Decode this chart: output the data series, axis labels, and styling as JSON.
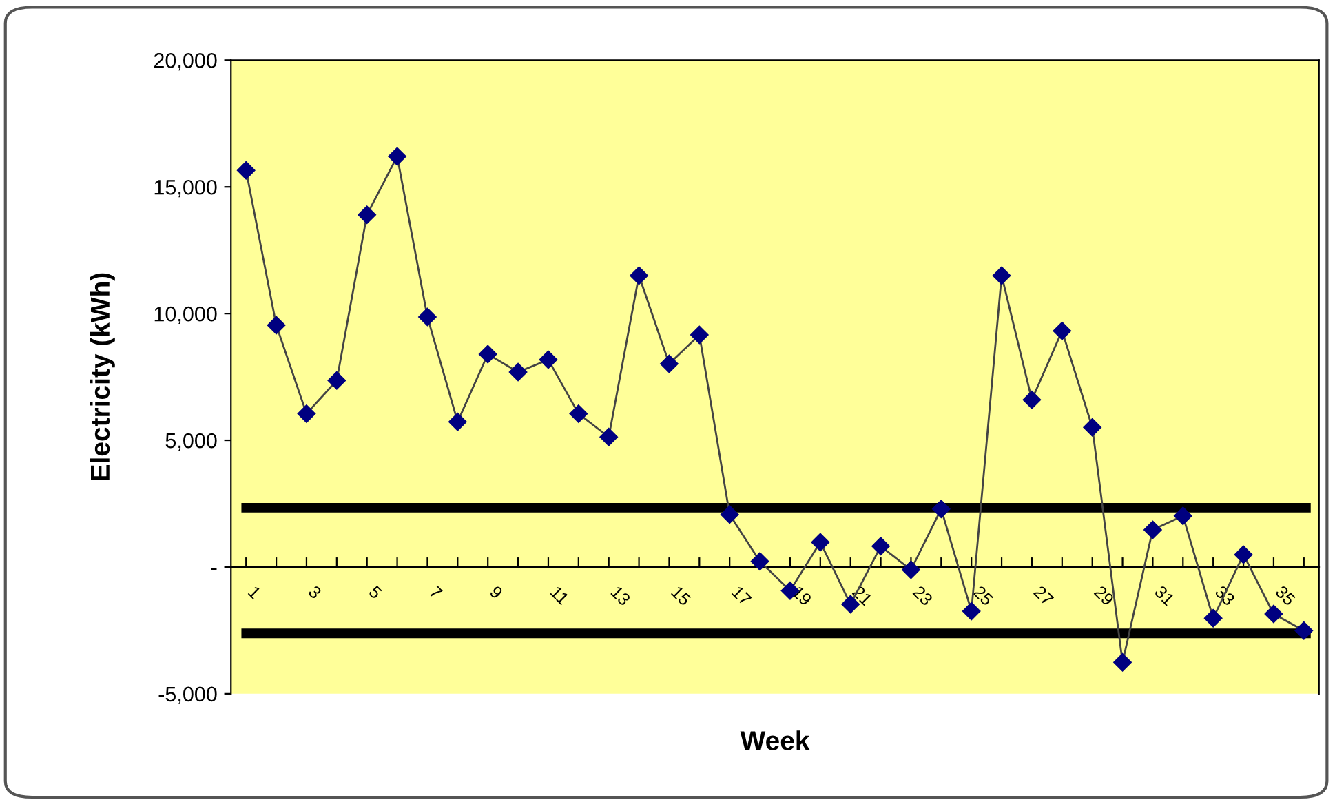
{
  "chart_data": {
    "type": "line",
    "xlabel": "Week",
    "ylabel": "Electricity (kWh)",
    "categories": [
      "1",
      null,
      "3",
      null,
      "5",
      null,
      "7",
      null,
      "9",
      null,
      "11",
      null,
      "13",
      null,
      "15",
      null,
      "17",
      null,
      "19",
      null,
      "21",
      null,
      "23",
      null,
      "25",
      null,
      "27",
      null,
      "29",
      null,
      "31",
      null,
      "33",
      null,
      "35",
      null
    ],
    "series": [
      {
        "color": "#000080",
        "values": [
          15650,
          9540,
          6050,
          7360,
          13900,
          16200,
          9870,
          5730,
          8400,
          7690,
          8180,
          6050,
          5130,
          11500,
          8020,
          9160,
          2070,
          220,
          -930,
          980,
          -1470,
          820,
          -110,
          2290,
          -1740,
          11500,
          6600,
          9320,
          5510,
          -3760,
          1470,
          2020,
          -2020,
          490,
          -1850,
          -2510
        ]
      }
    ],
    "ylim": [
      -5000,
      20000
    ],
    "yticks": [
      {
        "value": -5000,
        "label": "-5,000"
      },
      {
        "value": 0,
        "label": "-"
      },
      {
        "value": 5000,
        "label": "5,000"
      },
      {
        "value": 10000,
        "label": "10,000"
      },
      {
        "value": 15000,
        "label": "15,000"
      },
      {
        "value": 20000,
        "label": "20,000"
      }
    ],
    "ref_lines": [
      {
        "axis": "y",
        "value": 2340,
        "color": "#000000"
      },
      {
        "axis": "y",
        "value": -2620,
        "color": "#000000"
      }
    ],
    "grid": false,
    "legend": false,
    "marker": "diamond",
    "line_style": "solid"
  }
}
